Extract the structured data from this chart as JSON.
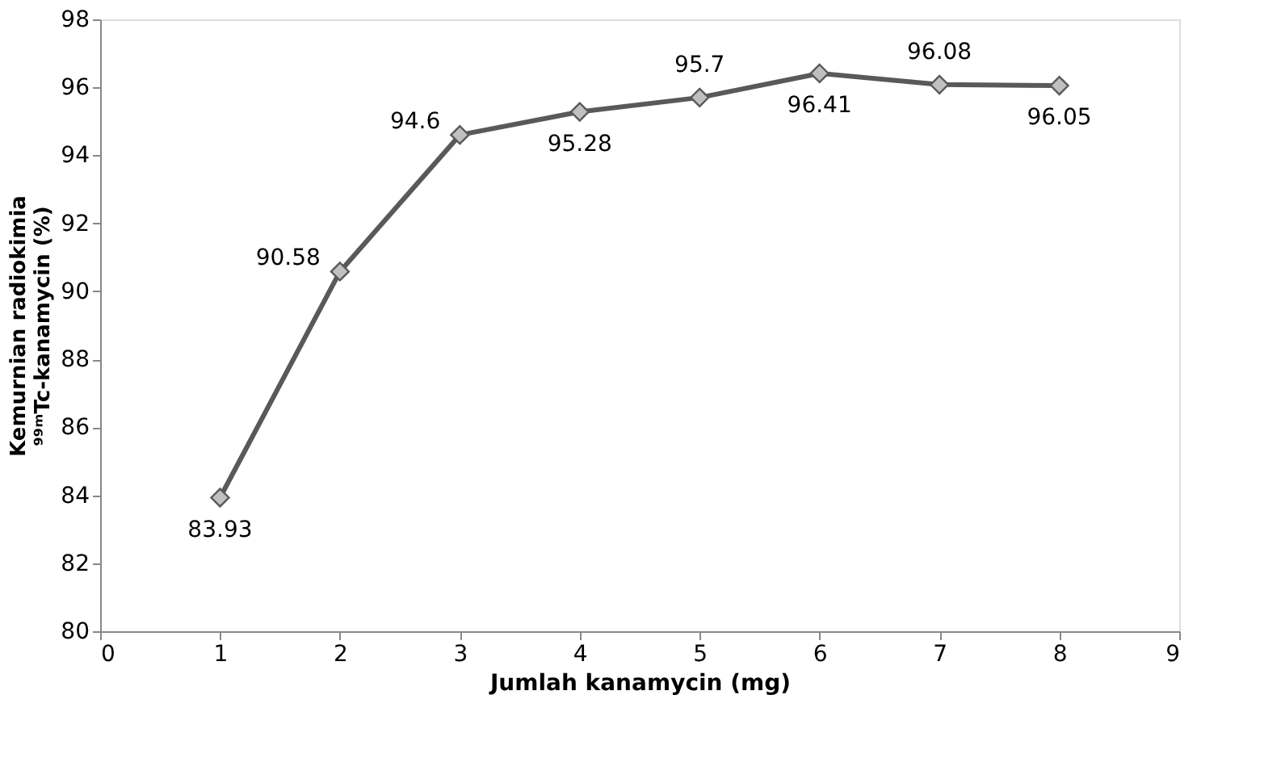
{
  "chart_data": {
    "type": "line",
    "xlabel": "Jumlah kanamycin (mg)",
    "ylabel": "Kemurnian radiokimia\n⁹⁹ᵐTc-kanamycin (%)",
    "x": [
      1,
      2,
      3,
      4,
      5,
      6,
      7,
      8
    ],
    "series": [
      {
        "color": "#595959",
        "values": [
          83.93,
          90.58,
          94.6,
          95.28,
          95.7,
          96.41,
          96.08,
          96.05
        ]
      }
    ],
    "xlim": [
      0,
      9
    ],
    "xticks": [
      0,
      1,
      2,
      3,
      4,
      5,
      6,
      7,
      8,
      9
    ],
    "ylim": [
      80,
      98
    ],
    "yticks": [
      80,
      82,
      84,
      86,
      88,
      90,
      92,
      94,
      96,
      98
    ],
    "grid": false,
    "marker": "diamond",
    "line_style": "solid",
    "data_labels": true
  }
}
